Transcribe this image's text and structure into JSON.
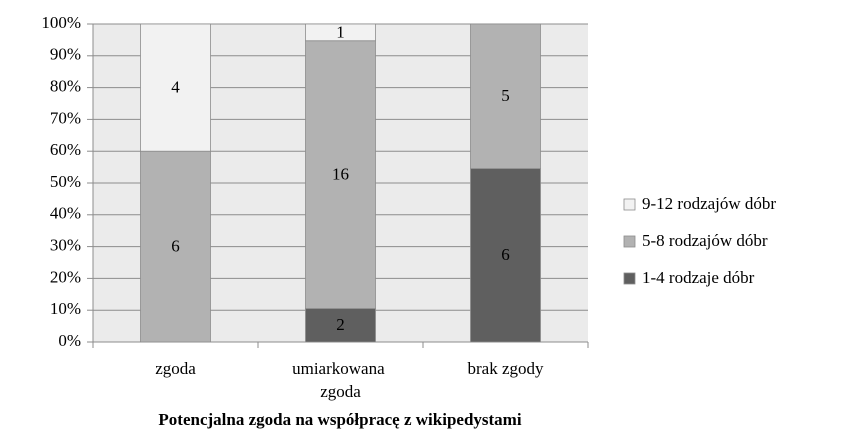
{
  "chart_data": {
    "type": "bar",
    "stacked": "percent",
    "title": "Potencjalna zgoda na współpracę z wikipedystami",
    "categories": [
      "zgoda",
      "umiarkowana zgoda",
      "brak zgody"
    ],
    "series": [
      {
        "name": "1-4 rodzaje dóbr",
        "color": "#5f5f5f",
        "values": [
          0,
          2,
          6
        ]
      },
      {
        "name": "5-8 rodzajów dóbr",
        "color": "#b2b2b2",
        "values": [
          6,
          16,
          5
        ]
      },
      {
        "name": "9-12 rodzajów dóbr",
        "color": "#f2f2f2",
        "values": [
          4,
          1,
          0
        ]
      }
    ],
    "ylim": [
      0,
      100
    ],
    "yticks": [
      {
        "value": 0,
        "label": "0%"
      },
      {
        "value": 10,
        "label": "10%"
      },
      {
        "value": 20,
        "label": "20%"
      },
      {
        "value": 30,
        "label": "30%"
      },
      {
        "value": 40,
        "label": "40%"
      },
      {
        "value": 50,
        "label": "50%"
      },
      {
        "value": 60,
        "label": "60%"
      },
      {
        "value": 70,
        "label": "70%"
      },
      {
        "value": 80,
        "label": "80%"
      },
      {
        "value": 90,
        "label": "90%"
      },
      {
        "value": 100,
        "label": "100%"
      }
    ],
    "grid": true,
    "legend": "right"
  }
}
